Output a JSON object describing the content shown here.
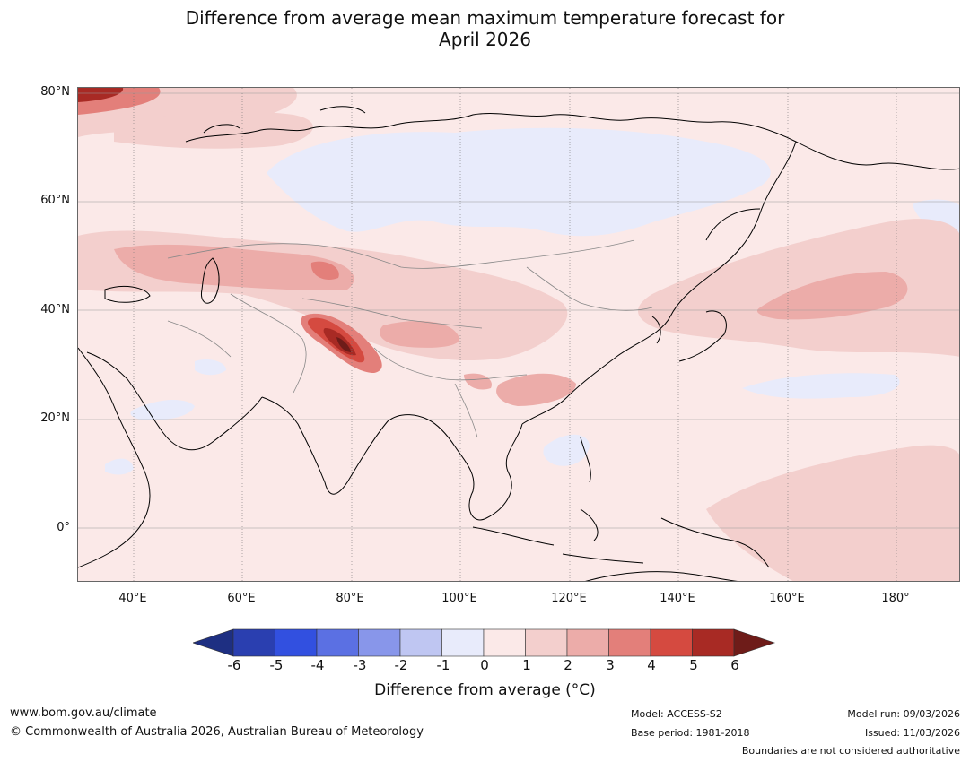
{
  "title_line1": "Difference from average mean maximum temperature forecast for",
  "title_line2": "April 2026",
  "lat_labels": [
    "80°N",
    "60°N",
    "40°N",
    "20°N",
    "0°"
  ],
  "lon_labels": [
    "40°E",
    "60°E",
    "80°E",
    "100°E",
    "120°E",
    "140°E",
    "160°E",
    "180°"
  ],
  "colorbar": {
    "ticks": [
      "-6",
      "-5",
      "-4",
      "-3",
      "-2",
      "-1",
      "0",
      "1",
      "2",
      "3",
      "4",
      "5",
      "6"
    ],
    "colors": [
      "#1e2f82",
      "#2a3fb0",
      "#3250e0",
      "#5b70e3",
      "#8896ea",
      "#bfc6f2",
      "#e8ebfb",
      "#fbe9e8",
      "#f3cfcd",
      "#ecaca9",
      "#e37f7a",
      "#d54a40",
      "#a82a24",
      "#6e1c19"
    ],
    "label": "Difference from average (°C)"
  },
  "footer": {
    "website": "www.bom.gov.au/climate",
    "copyright": "© Commonwealth of Australia 2026, Australian Bureau of Meteorology",
    "model": "Model: ACCESS-S2",
    "base_period": "Base period: 1981-2018",
    "model_run": "Model run: 09/03/2026",
    "issued": "Issued: 11/03/2026",
    "disclaimer": "Boundaries are not considered authoritative"
  }
}
